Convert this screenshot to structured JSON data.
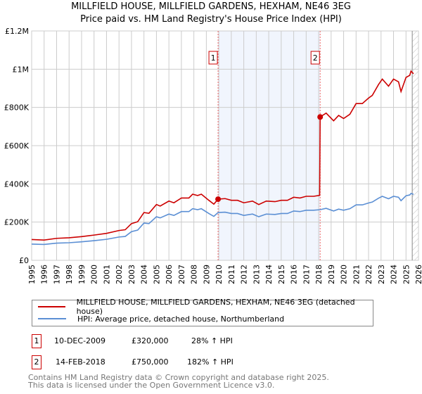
{
  "chart_data": {
    "type": "line",
    "title": "MILLFIELD HOUSE, MILLFIELD GARDENS, HEXHAM, NE46 3EG",
    "subtitle": "Price paid vs. HM Land Registry's House Price Index (HPI)",
    "xlim": [
      1995,
      2026
    ],
    "ylim": [
      0,
      1200000
    ],
    "x_ticks": [
      "1995",
      "1996",
      "1997",
      "1998",
      "1999",
      "2000",
      "2001",
      "2002",
      "2003",
      "2004",
      "2005",
      "2006",
      "2007",
      "2008",
      "2009",
      "2010",
      "2011",
      "2012",
      "2013",
      "2014",
      "2015",
      "2016",
      "2017",
      "2018",
      "2019",
      "2020",
      "2021",
      "2022",
      "2023",
      "2024",
      "2025",
      "2026"
    ],
    "y_ticks": [
      {
        "v": 0,
        "label": "£0"
      },
      {
        "v": 200000,
        "label": "£200K"
      },
      {
        "v": 400000,
        "label": "£400K"
      },
      {
        "v": 600000,
        "label": "£600K"
      },
      {
        "v": 800000,
        "label": "£800K"
      },
      {
        "v": 1000000,
        "label": "£1M"
      },
      {
        "v": 1200000,
        "label": "£1.2M"
      }
    ],
    "grid": true,
    "series": [
      {
        "name": "MILLFIELD HOUSE, MILLFIELD GARDENS, HEXHAM, NE46 3EG (detached house)",
        "color": "#cc0000",
        "points": [
          [
            1995,
            109
          ],
          [
            1996,
            106
          ],
          [
            1997,
            115
          ],
          [
            1998,
            118
          ],
          [
            1999,
            124
          ],
          [
            2000,
            132
          ],
          [
            2001,
            141
          ],
          [
            2002,
            156
          ],
          [
            2002.5,
            160
          ],
          [
            2003,
            192
          ],
          [
            2003.5,
            202
          ],
          [
            2004,
            250
          ],
          [
            2004.4,
            246
          ],
          [
            2005,
            292
          ],
          [
            2005.3,
            284
          ],
          [
            2006,
            310
          ],
          [
            2006.4,
            301
          ],
          [
            2007,
            326
          ],
          [
            2007.6,
            326
          ],
          [
            2007.9,
            346
          ],
          [
            2008.3,
            339
          ],
          [
            2008.6,
            346
          ],
          [
            2009.2,
            314
          ],
          [
            2009.6,
            294
          ],
          [
            2009.94,
            320
          ],
          [
            2010.5,
            323
          ],
          [
            2011,
            314
          ],
          [
            2011.5,
            314
          ],
          [
            2012,
            301
          ],
          [
            2012.7,
            310
          ],
          [
            2013.2,
            292
          ],
          [
            2013.8,
            310
          ],
          [
            2014.5,
            307
          ],
          [
            2015,
            314
          ],
          [
            2015.5,
            314
          ],
          [
            2016,
            330
          ],
          [
            2016.5,
            326
          ],
          [
            2017,
            335
          ],
          [
            2017.6,
            335
          ],
          [
            2018.08,
            340
          ],
          [
            2018.12,
            750
          ],
          [
            2018.6,
            770
          ],
          [
            2019.2,
            730
          ],
          [
            2019.6,
            758
          ],
          [
            2020,
            742
          ],
          [
            2020.5,
            764
          ],
          [
            2021,
            820
          ],
          [
            2021.5,
            820
          ],
          [
            2022,
            849
          ],
          [
            2022.3,
            863
          ],
          [
            2022.8,
            920
          ],
          [
            2023.1,
            948
          ],
          [
            2023.6,
            911
          ],
          [
            2024,
            948
          ],
          [
            2024.4,
            934
          ],
          [
            2024.6,
            883
          ],
          [
            2025,
            957
          ],
          [
            2025.3,
            968
          ],
          [
            2025.4,
            990
          ],
          [
            2025.6,
            976
          ]
        ]
      },
      {
        "name": "HPI: Average price, detached house, Northumberland",
        "color": "#5b8fd4",
        "points": [
          [
            1995,
            85
          ],
          [
            1996,
            83
          ],
          [
            1997,
            90
          ],
          [
            1998,
            92
          ],
          [
            1999,
            97
          ],
          [
            2000,
            103
          ],
          [
            2001,
            110
          ],
          [
            2002,
            122
          ],
          [
            2002.5,
            125
          ],
          [
            2003,
            150
          ],
          [
            2003.5,
            158
          ],
          [
            2004,
            195
          ],
          [
            2004.4,
            192
          ],
          [
            2005,
            228
          ],
          [
            2005.3,
            222
          ],
          [
            2006,
            242
          ],
          [
            2006.4,
            235
          ],
          [
            2007,
            255
          ],
          [
            2007.6,
            255
          ],
          [
            2007.9,
            270
          ],
          [
            2008.3,
            265
          ],
          [
            2008.6,
            270
          ],
          [
            2009.2,
            245
          ],
          [
            2009.6,
            230
          ],
          [
            2009.94,
            250
          ],
          [
            2010.5,
            252
          ],
          [
            2011,
            245
          ],
          [
            2011.5,
            245
          ],
          [
            2012,
            235
          ],
          [
            2012.7,
            242
          ],
          [
            2013.2,
            228
          ],
          [
            2013.8,
            242
          ],
          [
            2014.5,
            240
          ],
          [
            2015,
            245
          ],
          [
            2015.5,
            245
          ],
          [
            2016,
            258
          ],
          [
            2016.5,
            255
          ],
          [
            2017,
            262
          ],
          [
            2017.6,
            262
          ],
          [
            2018.12,
            265
          ],
          [
            2018.6,
            272
          ],
          [
            2019.2,
            258
          ],
          [
            2019.6,
            268
          ],
          [
            2020,
            262
          ],
          [
            2020.5,
            270
          ],
          [
            2021,
            290
          ],
          [
            2021.5,
            290
          ],
          [
            2022,
            300
          ],
          [
            2022.3,
            305
          ],
          [
            2022.8,
            325
          ],
          [
            2023.1,
            335
          ],
          [
            2023.6,
            322
          ],
          [
            2024,
            335
          ],
          [
            2024.4,
            330
          ],
          [
            2024.6,
            312
          ],
          [
            2025,
            338
          ],
          [
            2025.3,
            342
          ],
          [
            2025.4,
            350
          ],
          [
            2025.6,
            345
          ]
        ]
      }
    ],
    "y_units_multiplier": 1000,
    "shaded_range": [
      2009.94,
      2018.12
    ],
    "projection_start": 2025.5,
    "annotations": [
      {
        "label": "1",
        "x": 2009.94,
        "y": 320000
      },
      {
        "label": "2",
        "x": 2018.12,
        "y": 750000
      }
    ]
  },
  "sales": [
    {
      "num": "1",
      "date": "10-DEC-2009",
      "price": "£320,000",
      "hpi": "28% ↑ HPI"
    },
    {
      "num": "2",
      "date": "14-FEB-2018",
      "price": "£750,000",
      "hpi": "182% ↑ HPI"
    }
  ],
  "footer": {
    "line1": "Contains HM Land Registry data © Crown copyright and database right 2025.",
    "line2": "This data is licensed under the Open Government Licence v3.0."
  }
}
